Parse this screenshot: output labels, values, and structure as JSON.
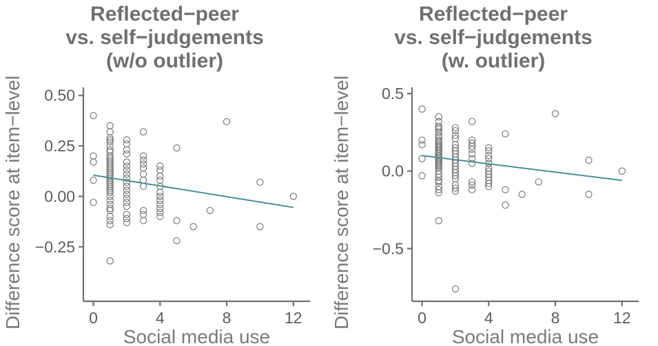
{
  "chart_data": [
    {
      "type": "scatter",
      "title_lines": [
        "Reflected−peer",
        "vs. self−judgements",
        "(w/o outlier)"
      ],
      "xlabel": "Social media use",
      "ylabel": "Difference score at item−level",
      "xlim": [
        -0.6,
        13
      ],
      "ylim": [
        -0.52,
        0.54
      ],
      "xticks": [
        0,
        4,
        8,
        12
      ],
      "xtick_labels": [
        "0",
        "4",
        "8",
        "12"
      ],
      "yticks": [
        -0.25,
        0.0,
        0.25,
        0.5
      ],
      "ytick_labels": [
        "−0.25",
        "0.00",
        "0.25",
        "0.50"
      ],
      "grid": false,
      "colors": {
        "point_stroke": "#707070",
        "fit_line": "#4a8f97",
        "axis": "#707070",
        "title": "#707070"
      },
      "fit_line": {
        "x": [
          0,
          12
        ],
        "y": [
          0.105,
          -0.055
        ]
      },
      "points": [
        [
          0,
          0.4
        ],
        [
          0,
          0.2
        ],
        [
          0,
          0.17
        ],
        [
          0,
          0.08
        ],
        [
          0,
          -0.03
        ],
        [
          1,
          0.35
        ],
        [
          1,
          0.32
        ],
        [
          1,
          0.29
        ],
        [
          1,
          0.28
        ],
        [
          1,
          0.27
        ],
        [
          1,
          0.25
        ],
        [
          1,
          0.23
        ],
        [
          1,
          0.22
        ],
        [
          1,
          0.2
        ],
        [
          1,
          0.19
        ],
        [
          1,
          0.18
        ],
        [
          1,
          0.17
        ],
        [
          1,
          0.16
        ],
        [
          1,
          0.15
        ],
        [
          1,
          0.14
        ],
        [
          1,
          0.13
        ],
        [
          1,
          0.12
        ],
        [
          1,
          0.11
        ],
        [
          1,
          0.1
        ],
        [
          1,
          0.09
        ],
        [
          1,
          0.08
        ],
        [
          1,
          0.07
        ],
        [
          1,
          0.06
        ],
        [
          1,
          0.05
        ],
        [
          1,
          0.04
        ],
        [
          1,
          0.03
        ],
        [
          1,
          0.02
        ],
        [
          1,
          0.0
        ],
        [
          1,
          -0.02
        ],
        [
          1,
          -0.04
        ],
        [
          1,
          -0.06
        ],
        [
          1,
          -0.07
        ],
        [
          1,
          -0.1
        ],
        [
          1,
          -0.12
        ],
        [
          1,
          -0.14
        ],
        [
          1,
          -0.32
        ],
        [
          2,
          0.28
        ],
        [
          2,
          0.26
        ],
        [
          2,
          0.23
        ],
        [
          2,
          0.21
        ],
        [
          2,
          0.17
        ],
        [
          2,
          0.15
        ],
        [
          2,
          0.13
        ],
        [
          2,
          0.11
        ],
        [
          2,
          0.09
        ],
        [
          2,
          0.07
        ],
        [
          2,
          0.05
        ],
        [
          2,
          0.03
        ],
        [
          2,
          0.01
        ],
        [
          2,
          -0.01
        ],
        [
          2,
          -0.03
        ],
        [
          2,
          -0.05
        ],
        [
          2,
          -0.09
        ],
        [
          2,
          -0.11
        ],
        [
          2,
          -0.13
        ],
        [
          3,
          0.32
        ],
        [
          3,
          0.2
        ],
        [
          3,
          0.18
        ],
        [
          3,
          0.16
        ],
        [
          3,
          0.14
        ],
        [
          3,
          0.11
        ],
        [
          3,
          0.08
        ],
        [
          3,
          0.05
        ],
        [
          3,
          -0.07
        ],
        [
          3,
          -0.09
        ],
        [
          3,
          -0.12
        ],
        [
          4,
          0.15
        ],
        [
          4,
          0.13
        ],
        [
          4,
          0.1
        ],
        [
          4,
          0.08
        ],
        [
          4,
          0.05
        ],
        [
          4,
          0.02
        ],
        [
          4,
          0.0
        ],
        [
          4,
          -0.02
        ],
        [
          4,
          -0.04
        ],
        [
          4,
          -0.06
        ],
        [
          4,
          -0.08
        ],
        [
          4,
          -0.1
        ],
        [
          5,
          0.24
        ],
        [
          5,
          -0.12
        ],
        [
          5,
          -0.22
        ],
        [
          6,
          -0.15
        ],
        [
          7,
          -0.07
        ],
        [
          8,
          0.37
        ],
        [
          10,
          0.07
        ],
        [
          10,
          -0.15
        ],
        [
          12,
          0.0
        ]
      ]
    },
    {
      "type": "scatter",
      "title_lines": [
        "Reflected−peer",
        "vs. self−judgements",
        "(w. outlier)"
      ],
      "xlabel": "Social media use",
      "ylabel": "Difference score at item−level",
      "xlim": [
        -0.6,
        13
      ],
      "ylim": [
        -0.84,
        0.54
      ],
      "xticks": [
        0,
        4,
        8,
        12
      ],
      "xtick_labels": [
        "0",
        "4",
        "8",
        "12"
      ],
      "yticks": [
        -0.5,
        0.0,
        0.5
      ],
      "ytick_labels": [
        "−0.5",
        "0.0",
        "0.5"
      ],
      "grid": false,
      "colors": {
        "point_stroke": "#707070",
        "fit_line": "#4a8f97",
        "axis": "#707070",
        "title": "#707070"
      },
      "fit_line": {
        "x": [
          0,
          12
        ],
        "y": [
          0.1,
          -0.06
        ]
      },
      "points": [
        [
          0,
          0.4
        ],
        [
          0,
          0.2
        ],
        [
          0,
          0.17
        ],
        [
          0,
          0.08
        ],
        [
          0,
          -0.03
        ],
        [
          1,
          0.35
        ],
        [
          1,
          0.32
        ],
        [
          1,
          0.29
        ],
        [
          1,
          0.28
        ],
        [
          1,
          0.27
        ],
        [
          1,
          0.25
        ],
        [
          1,
          0.23
        ],
        [
          1,
          0.22
        ],
        [
          1,
          0.2
        ],
        [
          1,
          0.19
        ],
        [
          1,
          0.18
        ],
        [
          1,
          0.17
        ],
        [
          1,
          0.16
        ],
        [
          1,
          0.15
        ],
        [
          1,
          0.14
        ],
        [
          1,
          0.13
        ],
        [
          1,
          0.12
        ],
        [
          1,
          0.11
        ],
        [
          1,
          0.1
        ],
        [
          1,
          0.09
        ],
        [
          1,
          0.08
        ],
        [
          1,
          0.07
        ],
        [
          1,
          0.06
        ],
        [
          1,
          0.05
        ],
        [
          1,
          0.04
        ],
        [
          1,
          0.03
        ],
        [
          1,
          0.02
        ],
        [
          1,
          0.0
        ],
        [
          1,
          -0.02
        ],
        [
          1,
          -0.04
        ],
        [
          1,
          -0.06
        ],
        [
          1,
          -0.07
        ],
        [
          1,
          -0.1
        ],
        [
          1,
          -0.12
        ],
        [
          1,
          -0.14
        ],
        [
          1,
          -0.32
        ],
        [
          2,
          0.28
        ],
        [
          2,
          0.26
        ],
        [
          2,
          0.23
        ],
        [
          2,
          0.21
        ],
        [
          2,
          0.17
        ],
        [
          2,
          0.15
        ],
        [
          2,
          0.13
        ],
        [
          2,
          0.11
        ],
        [
          2,
          0.09
        ],
        [
          2,
          0.07
        ],
        [
          2,
          0.05
        ],
        [
          2,
          0.03
        ],
        [
          2,
          0.01
        ],
        [
          2,
          -0.01
        ],
        [
          2,
          -0.03
        ],
        [
          2,
          -0.05
        ],
        [
          2,
          -0.09
        ],
        [
          2,
          -0.11
        ],
        [
          2,
          -0.13
        ],
        [
          2,
          -0.76
        ],
        [
          3,
          0.32
        ],
        [
          3,
          0.2
        ],
        [
          3,
          0.18
        ],
        [
          3,
          0.16
        ],
        [
          3,
          0.14
        ],
        [
          3,
          0.11
        ],
        [
          3,
          0.08
        ],
        [
          3,
          0.05
        ],
        [
          3,
          -0.07
        ],
        [
          3,
          -0.09
        ],
        [
          3,
          -0.12
        ],
        [
          4,
          0.15
        ],
        [
          4,
          0.13
        ],
        [
          4,
          0.1
        ],
        [
          4,
          0.08
        ],
        [
          4,
          0.05
        ],
        [
          4,
          0.02
        ],
        [
          4,
          0.0
        ],
        [
          4,
          -0.02
        ],
        [
          4,
          -0.04
        ],
        [
          4,
          -0.06
        ],
        [
          4,
          -0.08
        ],
        [
          4,
          -0.1
        ],
        [
          5,
          0.24
        ],
        [
          5,
          -0.12
        ],
        [
          5,
          -0.22
        ],
        [
          6,
          -0.15
        ],
        [
          7,
          -0.07
        ],
        [
          8,
          0.37
        ],
        [
          10,
          0.07
        ],
        [
          10,
          -0.15
        ],
        [
          12,
          0.0
        ]
      ]
    }
  ]
}
